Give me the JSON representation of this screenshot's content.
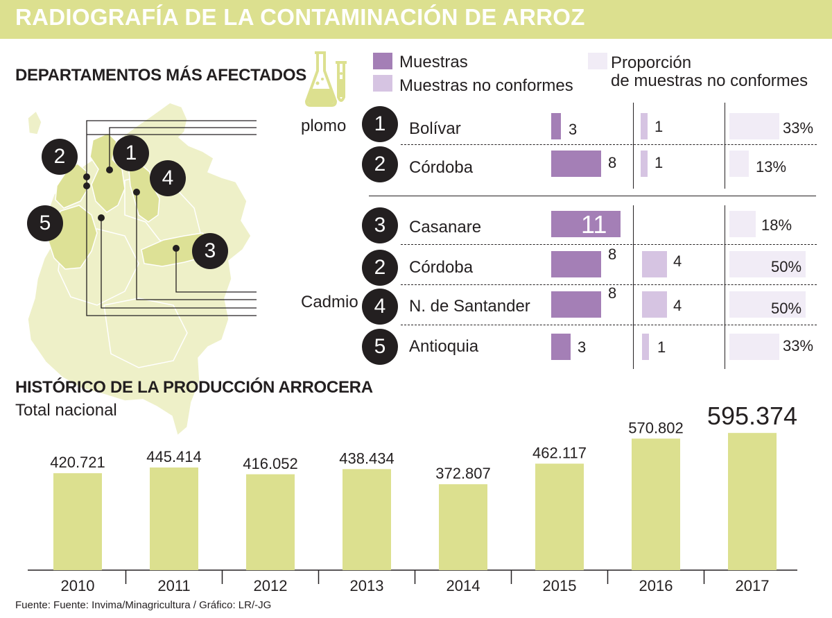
{
  "title": "RADIOGRAFÍA DE LA CONTAMINACIÓN DE ARROZ",
  "map_section": {
    "title": "DEPARTAMENTOS MÁS AFECTADOS"
  },
  "legend": {
    "samples": "Muestras",
    "nonconforming": "Muestras no conformes",
    "proportion_line1": "Proporción",
    "proportion_line2": "de muestras no conformes",
    "colors": {
      "samples": "#a47fb6",
      "nonconforming": "#d6c4e2",
      "proportion": "#f1ecf6"
    }
  },
  "contaminants": {
    "lead": {
      "label": "plomo",
      "rows": [
        {
          "rank": "1",
          "name": "Bolívar",
          "samples": 3,
          "nonconforming": 1,
          "proportion": "33%",
          "proportion_value": 33
        },
        {
          "rank": "2",
          "name": "Córdoba",
          "samples": 8,
          "nonconforming": 1,
          "proportion": "13%",
          "proportion_value": 13
        }
      ]
    },
    "cadmium": {
      "label": "Cadmio",
      "rows": [
        {
          "rank": "3",
          "name": "Casanare",
          "samples": 11,
          "nonconforming": null,
          "proportion": "18%",
          "proportion_value": 18
        },
        {
          "rank": "2",
          "name": "Córdoba",
          "samples": 8,
          "nonconforming": 4,
          "proportion": "50%",
          "proportion_value": 50
        },
        {
          "rank": "4",
          "name": "N. de Santander",
          "samples": 8,
          "nonconforming": 4,
          "proportion": "50%",
          "proportion_value": 50
        },
        {
          "rank": "5",
          "name": "Antioquia",
          "samples": 3,
          "nonconforming": 1,
          "proportion": "33%",
          "proportion_value": 33
        }
      ]
    }
  },
  "map_markers": [
    "1",
    "2",
    "3",
    "4",
    "5"
  ],
  "production": {
    "title": "HISTÓRICO DE LA PRODUCCIÓN ARROCERA",
    "subtitle": "Total nacional"
  },
  "chart_data": {
    "type": "bar",
    "title": "HISTÓRICO DE LA PRODUCCIÓN ARROCERA",
    "subtitle": "Total nacional",
    "categories": [
      "2010",
      "2011",
      "2012",
      "2013",
      "2014",
      "2015",
      "2016",
      "2017"
    ],
    "values": [
      420721,
      445414,
      416052,
      438434,
      372807,
      462117,
      570802,
      595374
    ],
    "labels": [
      "420.721",
      "445.414",
      "416.052",
      "438.434",
      "372.807",
      "462.117",
      "570.802",
      "595.374"
    ],
    "highlight_index": 7,
    "ylim": [
      0,
      620000
    ],
    "bar_color": "#dce08f",
    "grid": false
  },
  "source": "Fuente: Fuente: Invima/Minagricultura  / Gráfico: LR/-JG"
}
